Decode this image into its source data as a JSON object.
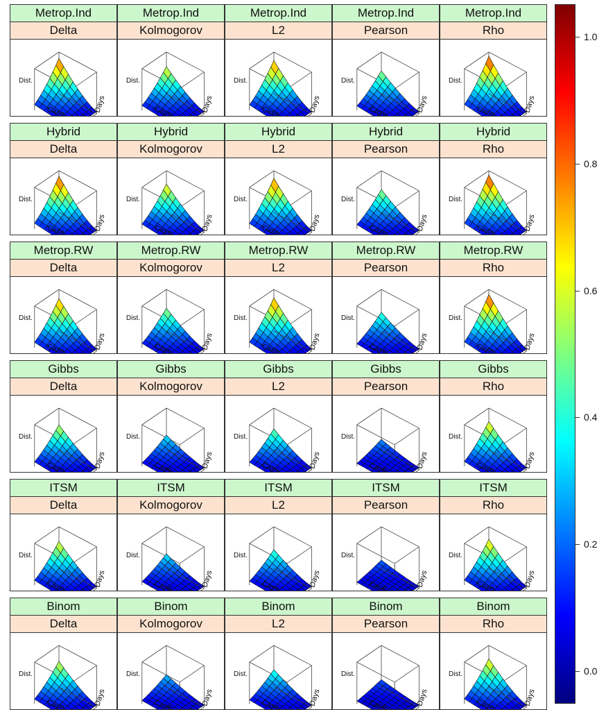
{
  "chart_data": {
    "type": "surface",
    "title": "",
    "axis_labels": {
      "x": "Case",
      "y": "Days",
      "z": "Dist."
    },
    "methods": [
      "Metrop.Ind",
      "Hybrid",
      "Metrop.RW",
      "Gibbs",
      "ITSM",
      "Binom"
    ],
    "metrics": [
      "Delta",
      "Kolmogorov",
      "L2",
      "Pearson",
      "Rho"
    ],
    "panel_peak_values": [
      [
        0.85,
        0.65,
        0.8,
        0.55,
        0.9
      ],
      [
        0.87,
        0.68,
        0.82,
        0.55,
        0.9
      ],
      [
        0.78,
        0.55,
        0.8,
        0.45,
        0.88
      ],
      [
        0.6,
        0.35,
        0.5,
        0.25,
        0.68
      ],
      [
        0.65,
        0.35,
        0.45,
        0.2,
        0.7
      ],
      [
        0.62,
        0.3,
        0.42,
        0.18,
        0.68
      ]
    ],
    "colorkey": {
      "range": [
        -0.05,
        1.05
      ],
      "ticks": [
        0.0,
        0.2,
        0.4,
        0.6,
        0.8,
        1.0
      ],
      "tick_labels": [
        "0.0",
        "0.2",
        "0.4",
        "0.6",
        "0.8",
        "1.0"
      ],
      "palette": [
        "#00007F",
        "#0000FF",
        "#007FFF",
        "#00FFFF",
        "#7FFF7F",
        "#FFFF00",
        "#FF7F00",
        "#FF0000",
        "#7F0000"
      ]
    }
  }
}
